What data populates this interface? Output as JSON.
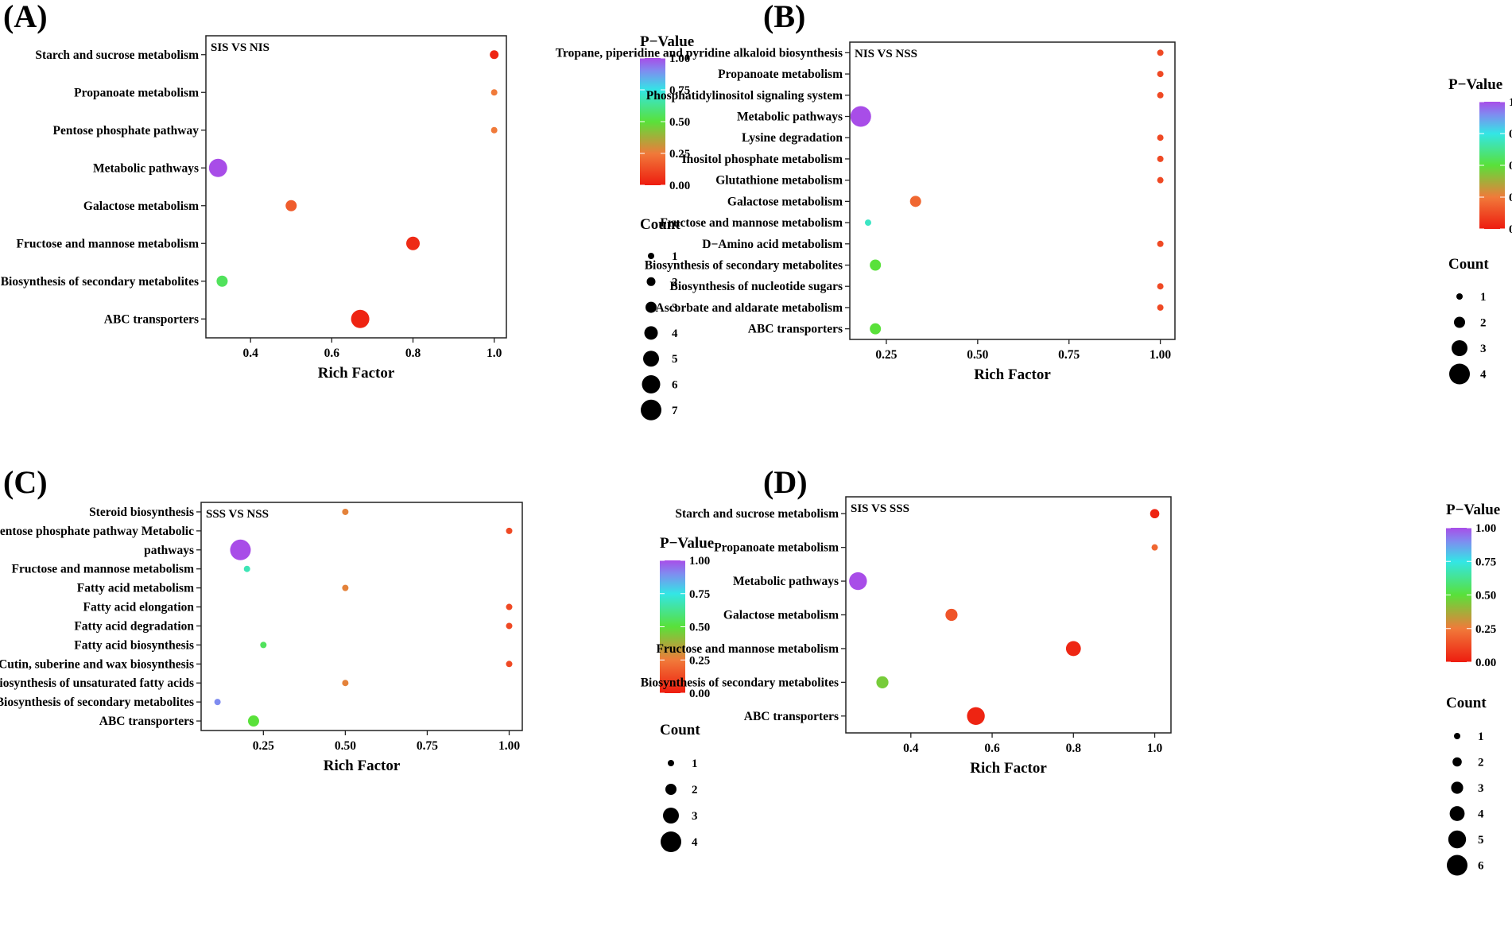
{
  "figure": {
    "colorbar_title": "P−Value",
    "colorbar_ticks": [
      "0.00",
      "0.25",
      "0.50",
      "0.75",
      "1.00"
    ],
    "size_legend_title": "Count",
    "xlabel": "Rich Factor"
  },
  "chart_data": [
    {
      "panel": "(A)",
      "type": "scatter",
      "title": "SIS VS NIS",
      "xlabel": "Rich Factor",
      "xlim": [
        0.29,
        1.03
      ],
      "xticks": [
        0.4,
        0.6,
        0.8,
        1.0
      ],
      "xtick_labels": [
        "0.4",
        "0.6",
        "0.8",
        "1.0"
      ],
      "count_levels": [
        1,
        2,
        3,
        4,
        5,
        6,
        7
      ],
      "count_max": 7,
      "points": [
        {
          "pathway": "Starch and sucrose metabolism",
          "rich_factor": 1.0,
          "p_value": 0.02,
          "count": 2
        },
        {
          "pathway": "Propanoate metabolism",
          "rich_factor": 1.0,
          "p_value": 0.25,
          "count": 1
        },
        {
          "pathway": "Pentose phosphate pathway",
          "rich_factor": 1.0,
          "p_value": 0.25,
          "count": 1
        },
        {
          "pathway": "Metabolic pathways",
          "rich_factor": 0.32,
          "p_value": 1.0,
          "count": 6
        },
        {
          "pathway": "Galactose metabolism",
          "rich_factor": 0.5,
          "p_value": 0.17,
          "count": 3
        },
        {
          "pathway": "Fructose and mannose metabolism",
          "rich_factor": 0.8,
          "p_value": 0.04,
          "count": 4
        },
        {
          "pathway": "Biosynthesis of secondary metabolites",
          "rich_factor": 0.33,
          "p_value": 0.55,
          "count": 3
        },
        {
          "pathway": "ABC transporters",
          "rich_factor": 0.67,
          "p_value": 0.02,
          "count": 6
        }
      ]
    },
    {
      "panel": "(B)",
      "type": "scatter",
      "title": "NIS VS NSS",
      "xlabel": "Rich Factor",
      "xlim": [
        0.15,
        1.04
      ],
      "xticks": [
        0.25,
        0.5,
        0.75,
        1.0
      ],
      "xtick_labels": [
        "0.25",
        "0.50",
        "0.75",
        "1.00"
      ],
      "count_levels": [
        1,
        2,
        3,
        4
      ],
      "count_max": 4,
      "points": [
        {
          "pathway": "Tropane, piperidine and pyridine alkaloid biosynthesis",
          "rich_factor": 1.0,
          "p_value": 0.12,
          "count": 1
        },
        {
          "pathway": "Propanoate metabolism",
          "rich_factor": 1.0,
          "p_value": 0.12,
          "count": 1
        },
        {
          "pathway": "Phosphatidylinositol signaling system",
          "rich_factor": 1.0,
          "p_value": 0.12,
          "count": 1
        },
        {
          "pathway": "Metabolic pathways",
          "rich_factor": 0.18,
          "p_value": 1.0,
          "count": 4
        },
        {
          "pathway": "Lysine degradation",
          "rich_factor": 1.0,
          "p_value": 0.12,
          "count": 1
        },
        {
          "pathway": "Inositol phosphate metabolism",
          "rich_factor": 1.0,
          "p_value": 0.12,
          "count": 1
        },
        {
          "pathway": "Glutathione metabolism",
          "rich_factor": 1.0,
          "p_value": 0.12,
          "count": 1
        },
        {
          "pathway": "Galactose metabolism",
          "rich_factor": 0.33,
          "p_value": 0.2,
          "count": 2
        },
        {
          "pathway": "Fructose and mannose metabolism",
          "rich_factor": 0.2,
          "p_value": 0.7,
          "count": 1
        },
        {
          "pathway": "D−Amino acid metabolism",
          "rich_factor": 1.0,
          "p_value": 0.12,
          "count": 1
        },
        {
          "pathway": "Biosynthesis of secondary metabolites",
          "rich_factor": 0.22,
          "p_value": 0.5,
          "count": 2
        },
        {
          "pathway": "Biosynthesis of nucleotide sugars",
          "rich_factor": 1.0,
          "p_value": 0.12,
          "count": 1
        },
        {
          "pathway": "Ascorbate and aldarate metabolism",
          "rich_factor": 1.0,
          "p_value": 0.12,
          "count": 1
        },
        {
          "pathway": "ABC transporters",
          "rich_factor": 0.22,
          "p_value": 0.5,
          "count": 2
        }
      ]
    },
    {
      "panel": "(C)",
      "type": "scatter",
      "title": "SSS VS NSS",
      "xlabel": "Rich Factor",
      "xlim": [
        0.06,
        1.04
      ],
      "xticks": [
        0.25,
        0.5,
        0.75,
        1.0
      ],
      "xtick_labels": [
        "0.25",
        "0.50",
        "0.75",
        "1.00"
      ],
      "count_levels": [
        1,
        2,
        3,
        4
      ],
      "count_max": 4,
      "points": [
        {
          "pathway": "Steroid biosynthesis",
          "rich_factor": 0.5,
          "p_value": 0.27,
          "count": 1
        },
        {
          "pathway": "Pentose phosphate pathway Metabolic",
          "rich_factor": 1.0,
          "p_value": 0.12,
          "count": 1
        },
        {
          "pathway": "pathways",
          "rich_factor": 0.18,
          "p_value": 1.0,
          "count": 4
        },
        {
          "pathway": "Fructose and mannose metabolism",
          "rich_factor": 0.2,
          "p_value": 0.68,
          "count": 1
        },
        {
          "pathway": "Fatty acid metabolism",
          "rich_factor": 0.5,
          "p_value": 0.27,
          "count": 1
        },
        {
          "pathway": "Fatty acid elongation",
          "rich_factor": 1.0,
          "p_value": 0.12,
          "count": 1
        },
        {
          "pathway": "Fatty acid degradation",
          "rich_factor": 1.0,
          "p_value": 0.12,
          "count": 1
        },
        {
          "pathway": "Fatty acid biosynthesis",
          "rich_factor": 0.25,
          "p_value": 0.55,
          "count": 1
        },
        {
          "pathway": "Cutin, suberine and wax biosynthesis",
          "rich_factor": 1.0,
          "p_value": 0.12,
          "count": 1
        },
        {
          "pathway": "Biosynthesis of unsaturated fatty acids",
          "rich_factor": 0.5,
          "p_value": 0.27,
          "count": 1
        },
        {
          "pathway": "Biosynthesis of secondary metabolites",
          "rich_factor": 0.11,
          "p_value": 0.9,
          "count": 1
        },
        {
          "pathway": "ABC transporters",
          "rich_factor": 0.22,
          "p_value": 0.5,
          "count": 2
        }
      ]
    },
    {
      "panel": "(D)",
      "type": "scatter",
      "title": "SIS VS SSS",
      "xlabel": "Rich Factor",
      "xlim": [
        0.24,
        1.04
      ],
      "xticks": [
        0.4,
        0.6,
        0.8,
        1.0
      ],
      "xtick_labels": [
        "0.4",
        "0.6",
        "0.8",
        "1.0"
      ],
      "count_levels": [
        1,
        2,
        3,
        4,
        5,
        6
      ],
      "count_max": 6,
      "points": [
        {
          "pathway": "Starch and sucrose metabolism",
          "rich_factor": 1.0,
          "p_value": 0.02,
          "count": 2
        },
        {
          "pathway": "Propanoate metabolism",
          "rich_factor": 1.0,
          "p_value": 0.2,
          "count": 1
        },
        {
          "pathway": "Metabolic pathways",
          "rich_factor": 0.27,
          "p_value": 1.0,
          "count": 5
        },
        {
          "pathway": "Galactose metabolism",
          "rich_factor": 0.5,
          "p_value": 0.15,
          "count": 3
        },
        {
          "pathway": "Fructose and mannose metabolism",
          "rich_factor": 0.8,
          "p_value": 0.03,
          "count": 4
        },
        {
          "pathway": "Biosynthesis of secondary metabolites",
          "rich_factor": 0.33,
          "p_value": 0.45,
          "count": 3
        },
        {
          "pathway": "ABC transporters",
          "rich_factor": 0.56,
          "p_value": 0.02,
          "count": 5
        }
      ]
    }
  ]
}
